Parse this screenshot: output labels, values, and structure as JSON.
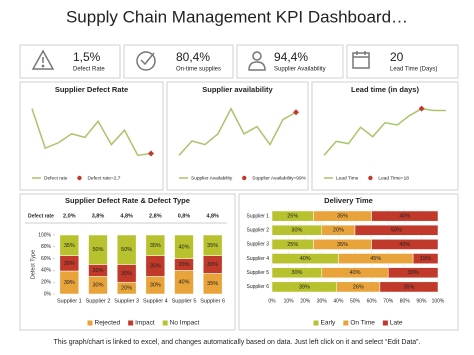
{
  "title": "Supply Chain Management KPI Dashboard…",
  "kpis": [
    {
      "value": "1,5%",
      "label": "Defect Rate"
    },
    {
      "value": "80,4%",
      "label": "On-time supplies"
    },
    {
      "value": "94,4%",
      "label": "Supplier Availability"
    },
    {
      "value": "20",
      "label": "Lead Time (Days)"
    }
  ],
  "chart_data": [
    {
      "type": "line",
      "title": "Supplier Defect Rate",
      "series": [
        {
          "name": "Defect rate",
          "color": "#a9c46a",
          "values": [
            5.2,
            3.0,
            3.3,
            3.8,
            3.6,
            4.5,
            3.2,
            4.0,
            2.6,
            2.7
          ]
        },
        {
          "name": "Defect rate=2,7",
          "color": "#c0392b",
          "values": [
            null,
            null,
            null,
            null,
            null,
            null,
            null,
            null,
            null,
            2.7
          ]
        }
      ]
    },
    {
      "type": "line",
      "title": "Supplier availability",
      "series": [
        {
          "name": "Supplier Availability",
          "color": "#a9c46a",
          "values": [
            93,
            95,
            94.5,
            96,
            99.5,
            96,
            97,
            94.5,
            98,
            99
          ]
        },
        {
          "name": "Supplier Availability=99%",
          "color": "#c0392b",
          "values": [
            null,
            null,
            null,
            null,
            null,
            null,
            null,
            null,
            null,
            99
          ]
        }
      ]
    },
    {
      "type": "line",
      "title": "Lead time (in days)",
      "series": [
        {
          "name": "Lead Time",
          "color": "#a9c46a",
          "values": [
            8,
            11,
            10.5,
            14,
            12,
            15,
            14.5,
            16.5,
            18,
            17.6,
            17.6
          ]
        },
        {
          "name": "Lead Time=18",
          "color": "#c0392b",
          "values": [
            null,
            null,
            null,
            null,
            null,
            null,
            null,
            null,
            18,
            null,
            null
          ]
        }
      ]
    },
    {
      "type": "bar",
      "stacked": true,
      "title": "Supplier Defect Rate & Defect Type",
      "y_label": "Defect Type",
      "table_row": {
        "label": "Defect rate",
        "cells": [
          "2,0%",
          "3,8%",
          "4,8%",
          "2,8%",
          "0,8%",
          "4,8%"
        ]
      },
      "categories": [
        "Supplier 1",
        "Supplier 2",
        "Supplier 3",
        "Supplier 4",
        "Supplier 5",
        "Supplier 6"
      ],
      "series": [
        {
          "name": "Rejected",
          "color": "#e8a33a",
          "values": [
            39,
            30,
            20,
            30,
            40,
            35
          ],
          "value_labels": [
            "39%",
            "30%",
            "20%",
            "30%",
            "40%",
            "35%"
          ]
        },
        {
          "name": "Impact",
          "color": "#c0392b",
          "values": [
            26,
            20,
            30,
            35,
            20,
            30
          ],
          "value_labels": [
            "26%",
            "20%",
            "30%",
            "35%",
            "20%",
            "30%"
          ]
        },
        {
          "name": "No Impact",
          "color": "#b8c22e",
          "values": [
            35,
            50,
            50,
            35,
            40,
            35
          ],
          "value_labels": [
            "35%",
            "50%",
            "50%",
            "35%",
            "40%",
            "35%"
          ]
        }
      ],
      "ylim": [
        0,
        100
      ],
      "yticks": [
        {
          "value": 0,
          "label": "0%"
        },
        {
          "value": 20,
          "label": "20%"
        },
        {
          "value": 40,
          "label": "40%"
        },
        {
          "value": 60,
          "label": "60%"
        },
        {
          "value": 80,
          "label": "80%"
        },
        {
          "value": 100,
          "label": "100%"
        }
      ]
    },
    {
      "type": "barh",
      "stacked": true,
      "title": "Delivery Time",
      "categories": [
        "Supplier 1",
        "Supplier 2",
        "Supplier 3",
        "Supplier 4",
        "Supplier 5",
        "Supplier 6"
      ],
      "series": [
        {
          "name": "Early",
          "color": "#b8c22e",
          "values": [
            25,
            30,
            25,
            40,
            30,
            39
          ],
          "value_labels": [
            "25%",
            "30%",
            "25%",
            "40%",
            "30%",
            "39%"
          ]
        },
        {
          "name": "On Time",
          "color": "#e8a33a",
          "values": [
            35,
            20,
            35,
            45,
            40,
            26
          ],
          "value_labels": [
            "35%",
            "20%",
            "35%",
            "45%",
            "40%",
            "26%"
          ]
        },
        {
          "name": "Late",
          "color": "#c0392b",
          "values": [
            40,
            50,
            40,
            15,
            30,
            35
          ],
          "value_labels": [
            "40%",
            "50%",
            "40%",
            "15%",
            "30%",
            "35%"
          ]
        }
      ],
      "xlim": [
        0,
        100
      ],
      "xticks": [
        {
          "value": 0,
          "label": "0%"
        },
        {
          "value": 10,
          "label": "10%"
        },
        {
          "value": 20,
          "label": "20%"
        },
        {
          "value": 30,
          "label": "30%"
        },
        {
          "value": 40,
          "label": "40%"
        },
        {
          "value": 50,
          "label": "50%"
        },
        {
          "value": 60,
          "label": "60%"
        },
        {
          "value": 70,
          "label": "70%"
        },
        {
          "value": 80,
          "label": "80%"
        },
        {
          "value": 90,
          "label": "90%"
        },
        {
          "value": 100,
          "label": "100%"
        }
      ]
    }
  ],
  "footer": "This graph/chart is linked to excel, and changes automatically based on data. Just left click on it and select “Edit Data”."
}
